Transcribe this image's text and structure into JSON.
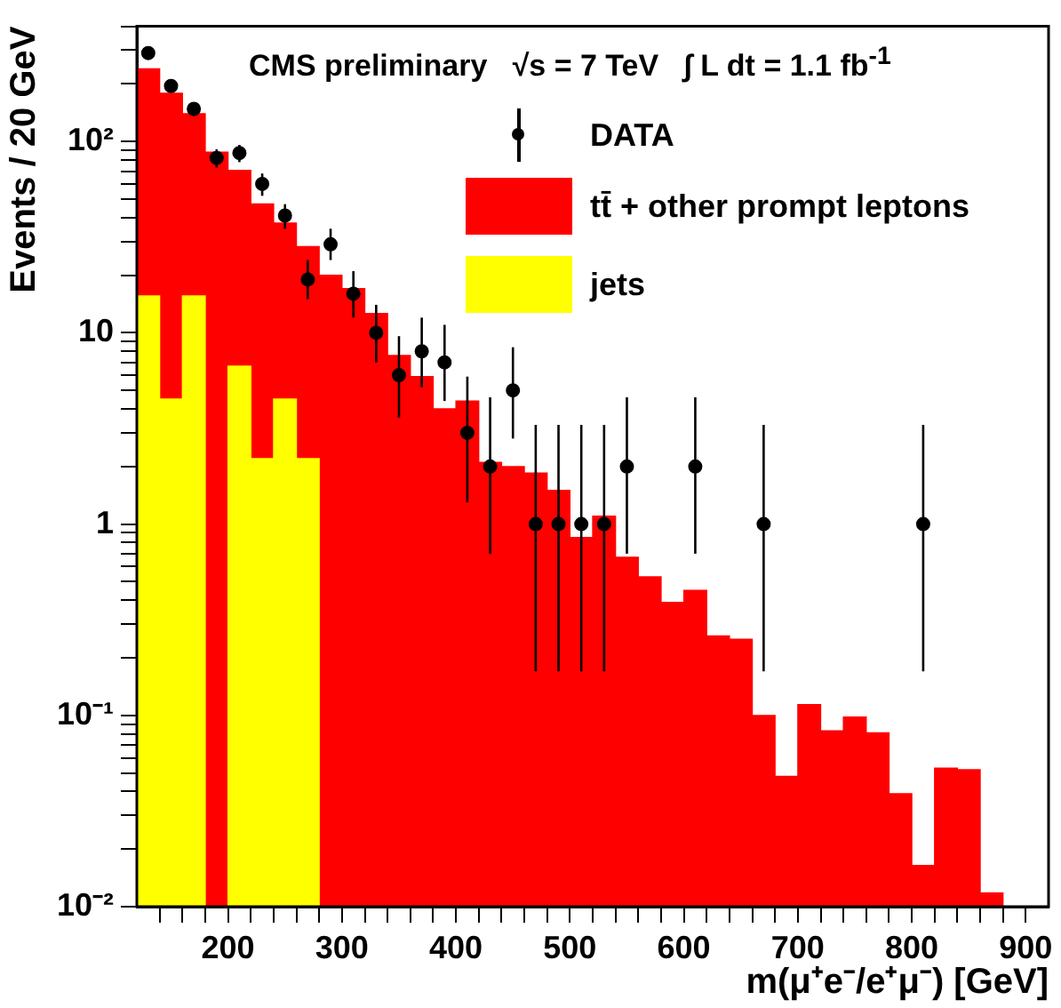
{
  "chart_data": {
    "type": "bar",
    "title": "CMS preliminary   √s = 7 TeV   ∫ L dt = 1.1 fb$^{-1}$",
    "xlabel": "m(μ⁺e⁻/e⁺μ⁻) [GeV]",
    "ylabel": "Events / 20 GeV",
    "x": [
      130,
      150,
      170,
      190,
      210,
      230,
      250,
      270,
      290,
      310,
      330,
      350,
      370,
      390,
      410,
      430,
      450,
      470,
      490,
      510,
      530,
      550,
      570,
      590,
      610,
      630,
      650,
      670,
      690,
      710,
      730,
      750,
      770,
      790,
      810,
      830,
      850,
      870
    ],
    "stacked": true,
    "series": [
      {
        "name": "jets",
        "color": "#ffff00",
        "values": [
          15.6,
          4.5,
          15.6,
          null,
          6.7,
          2.2,
          4.5,
          2.2,
          null,
          null,
          null,
          null,
          null,
          null,
          null,
          null,
          null,
          null,
          null,
          null,
          null,
          null,
          null,
          null,
          null,
          null,
          null,
          null,
          null,
          null,
          null,
          null,
          null,
          null,
          null,
          null,
          null,
          null
        ]
      },
      {
        "name": "tt̄ + other prompt leptons",
        "color": "#ff0000",
        "values": [
          224,
          174,
          124,
          88,
          64,
          45,
          33,
          26,
          20,
          17,
          12.6,
          7.6,
          5.9,
          4,
          4.4,
          2.1,
          2.0,
          1.85,
          1.5,
          0.85,
          1.1,
          0.67,
          0.53,
          0.39,
          0.45,
          0.26,
          0.25,
          0.1,
          0.048,
          0.114,
          0.083,
          0.098,
          0.081,
          0.039,
          0.0164,
          0.053,
          0.052,
          0.0118
        ]
      },
      {
        "name": "DATA",
        "type": "scatter",
        "color": "#000000",
        "x": [
          130,
          150,
          170,
          190,
          210,
          230,
          250,
          270,
          290,
          310,
          330,
          350,
          370,
          390,
          410,
          430,
          450,
          470,
          490,
          510,
          530,
          550,
          610,
          670,
          810
        ],
        "values": [
          290,
          195,
          148,
          82,
          87,
          60,
          41,
          19,
          29,
          16,
          10,
          6,
          8,
          7,
          3,
          2,
          5,
          1,
          1,
          1,
          1,
          2,
          2,
          1,
          1
        ],
        "errors": [
          [
            273,
            307
          ],
          [
            181,
            209
          ],
          [
            136,
            160
          ],
          [
            73,
            91
          ],
          [
            78,
            96
          ],
          [
            52,
            68
          ],
          [
            35,
            47
          ],
          [
            15,
            24
          ],
          [
            24,
            35
          ],
          [
            12,
            21
          ],
          [
            7,
            14
          ],
          [
            3.6,
            9.6
          ],
          [
            5.2,
            12
          ],
          [
            4.4,
            11
          ],
          [
            1.3,
            5.9
          ],
          [
            0.7,
            4.6
          ],
          [
            2.8,
            8.4
          ],
          [
            0.17,
            3.3
          ],
          [
            0.17,
            3.3
          ],
          [
            0.17,
            3.3
          ],
          [
            0.17,
            3.3
          ],
          [
            0.7,
            4.6
          ],
          [
            0.7,
            4.6
          ],
          [
            0.17,
            3.3
          ],
          [
            0.17,
            3.3
          ]
        ]
      }
    ],
    "marker": "circle",
    "log": "y",
    "xlim": [
      120,
      920
    ],
    "xticks": [
      {
        "value": 140,
        "label": null
      },
      {
        "value": 160,
        "label": null
      },
      {
        "value": 180,
        "label": null
      },
      200,
      {
        "value": 220,
        "label": null
      },
      {
        "value": 240,
        "label": null
      },
      {
        "value": 260,
        "label": null
      },
      {
        "value": 280,
        "label": null
      },
      300,
      {
        "value": 320,
        "label": null
      },
      {
        "value": 340,
        "label": null
      },
      {
        "value": 360,
        "label": null
      },
      {
        "value": 380,
        "label": null
      },
      400,
      {
        "value": 420,
        "label": null
      },
      {
        "value": 440,
        "label": null
      },
      {
        "value": 460,
        "label": null
      },
      {
        "value": 480,
        "label": null
      },
      500,
      {
        "value": 520,
        "label": null
      },
      {
        "value": 540,
        "label": null
      },
      {
        "value": 560,
        "label": null
      },
      {
        "value": 580,
        "label": null
      },
      600,
      {
        "value": 620,
        "label": null
      },
      {
        "value": 640,
        "label": null
      },
      {
        "value": 660,
        "label": null
      },
      {
        "value": 680,
        "label": null
      },
      700,
      {
        "value": 720,
        "label": null
      },
      {
        "value": 740,
        "label": null
      },
      {
        "value": 760,
        "label": null
      },
      {
        "value": 780,
        "label": null
      },
      800,
      {
        "value": 820,
        "label": null
      },
      {
        "value": 840,
        "label": null
      },
      {
        "value": 860,
        "label": null
      },
      {
        "value": 880,
        "label": null
      },
      900
    ],
    "ylim": [
      0.01,
      400
    ],
    "yticks": [
      {
        "value": 0.01,
        "label": "10⁻²"
      },
      {
        "value": 0.02,
        "label": null
      },
      {
        "value": 0.03,
        "label": null
      },
      {
        "value": 0.04,
        "label": null
      },
      {
        "value": 0.05,
        "label": null
      },
      {
        "value": 0.06,
        "label": null
      },
      {
        "value": 0.07,
        "label": null
      },
      {
        "value": 0.08,
        "label": null
      },
      {
        "value": 0.09,
        "label": null
      },
      {
        "value": 0.1,
        "label": "10⁻¹"
      },
      {
        "value": 0.2,
        "label": null
      },
      {
        "value": 0.3,
        "label": null
      },
      {
        "value": 0.4,
        "label": null
      },
      {
        "value": 0.5,
        "label": null
      },
      {
        "value": 0.6,
        "label": null
      },
      {
        "value": 0.7,
        "label": null
      },
      {
        "value": 0.8,
        "label": null
      },
      {
        "value": 0.9,
        "label": null
      },
      1,
      {
        "value": 2,
        "label": null
      },
      {
        "value": 3,
        "label": null
      },
      {
        "value": 4,
        "label": null
      },
      {
        "value": 5,
        "label": null
      },
      {
        "value": 6,
        "label": null
      },
      {
        "value": 7,
        "label": null
      },
      {
        "value": 8,
        "label": null
      },
      {
        "value": 9,
        "label": null
      },
      10,
      {
        "value": 20,
        "label": null
      },
      {
        "value": 30,
        "label": null
      },
      {
        "value": 40,
        "label": null
      },
      {
        "value": 50,
        "label": null
      },
      {
        "value": 60,
        "label": null
      },
      {
        "value": 70,
        "label": null
      },
      {
        "value": 80,
        "label": null
      },
      {
        "value": 90,
        "label": null
      },
      {
        "value": 100,
        "label": "10²"
      },
      {
        "value": 200,
        "label": null
      },
      {
        "value": 300,
        "label": null
      },
      {
        "value": 400,
        "label": null
      }
    ],
    "grid": false,
    "legend": "top right"
  }
}
